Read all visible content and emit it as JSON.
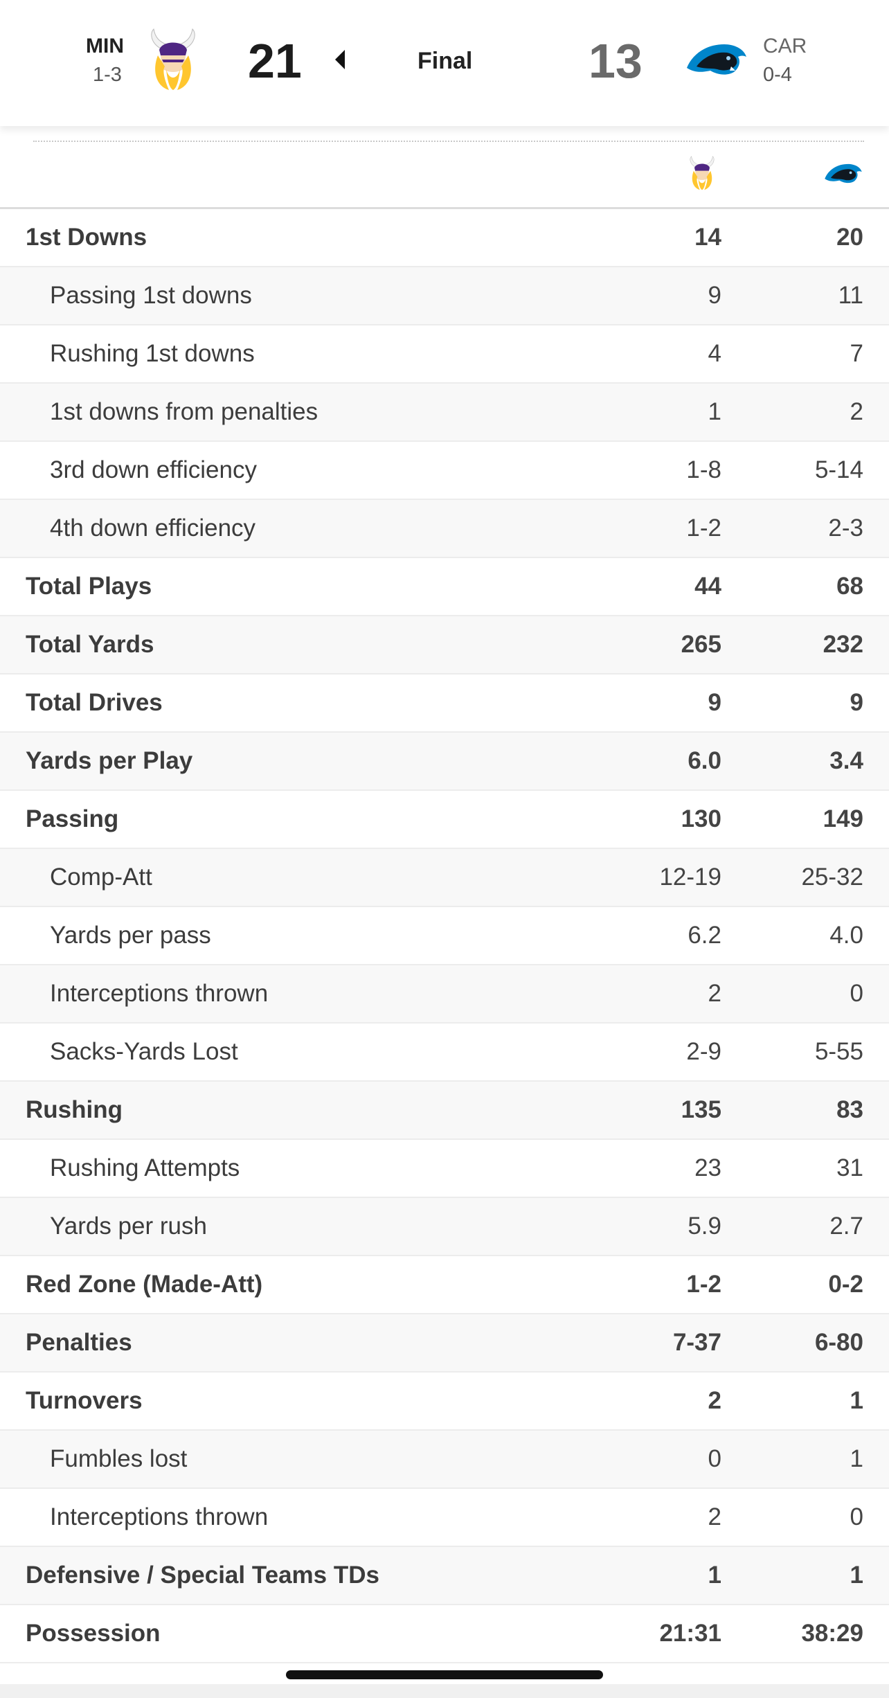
{
  "header": {
    "away": {
      "abbr": "MIN",
      "record": "1-3",
      "score": "21"
    },
    "status": "Final",
    "home": {
      "abbr": "CAR",
      "record": "0-4",
      "score": "13"
    }
  },
  "colors": {
    "vikings_purple": "#4F2683",
    "vikings_gold": "#FFC62F",
    "panthers_blue": "#0085CA",
    "panthers_black": "#101820"
  },
  "icons": [
    "vikings-logo-icon",
    "panthers-logo-icon",
    "caret-left-icon"
  ],
  "stats": [
    {
      "label": "1st Downs",
      "min": "14",
      "car": "20",
      "type": "main"
    },
    {
      "label": "Passing 1st downs",
      "min": "9",
      "car": "11",
      "type": "sub"
    },
    {
      "label": "Rushing 1st downs",
      "min": "4",
      "car": "7",
      "type": "sub"
    },
    {
      "label": "1st downs from penalties",
      "min": "1",
      "car": "2",
      "type": "sub"
    },
    {
      "label": "3rd down efficiency",
      "min": "1-8",
      "car": "5-14",
      "type": "sub"
    },
    {
      "label": "4th down efficiency",
      "min": "1-2",
      "car": "2-3",
      "type": "sub"
    },
    {
      "label": "Total Plays",
      "min": "44",
      "car": "68",
      "type": "main"
    },
    {
      "label": "Total Yards",
      "min": "265",
      "car": "232",
      "type": "main"
    },
    {
      "label": "Total Drives",
      "min": "9",
      "car": "9",
      "type": "main"
    },
    {
      "label": "Yards per Play",
      "min": "6.0",
      "car": "3.4",
      "type": "main"
    },
    {
      "label": "Passing",
      "min": "130",
      "car": "149",
      "type": "main"
    },
    {
      "label": "Comp-Att",
      "min": "12-19",
      "car": "25-32",
      "type": "sub"
    },
    {
      "label": "Yards per pass",
      "min": "6.2",
      "car": "4.0",
      "type": "sub"
    },
    {
      "label": "Interceptions thrown",
      "min": "2",
      "car": "0",
      "type": "sub"
    },
    {
      "label": "Sacks-Yards Lost",
      "min": "2-9",
      "car": "5-55",
      "type": "sub"
    },
    {
      "label": "Rushing",
      "min": "135",
      "car": "83",
      "type": "main"
    },
    {
      "label": "Rushing Attempts",
      "min": "23",
      "car": "31",
      "type": "sub"
    },
    {
      "label": "Yards per rush",
      "min": "5.9",
      "car": "2.7",
      "type": "sub"
    },
    {
      "label": "Red Zone (Made-Att)",
      "min": "1-2",
      "car": "0-2",
      "type": "main"
    },
    {
      "label": "Penalties",
      "min": "7-37",
      "car": "6-80",
      "type": "main"
    },
    {
      "label": "Turnovers",
      "min": "2",
      "car": "1",
      "type": "main"
    },
    {
      "label": "Fumbles lost",
      "min": "0",
      "car": "1",
      "type": "sub"
    },
    {
      "label": "Interceptions thrown",
      "min": "2",
      "car": "0",
      "type": "sub"
    },
    {
      "label": "Defensive / Special Teams TDs",
      "min": "1",
      "car": "1",
      "type": "main"
    },
    {
      "label": "Possession",
      "min": "21:31",
      "car": "38:29",
      "type": "main"
    }
  ]
}
